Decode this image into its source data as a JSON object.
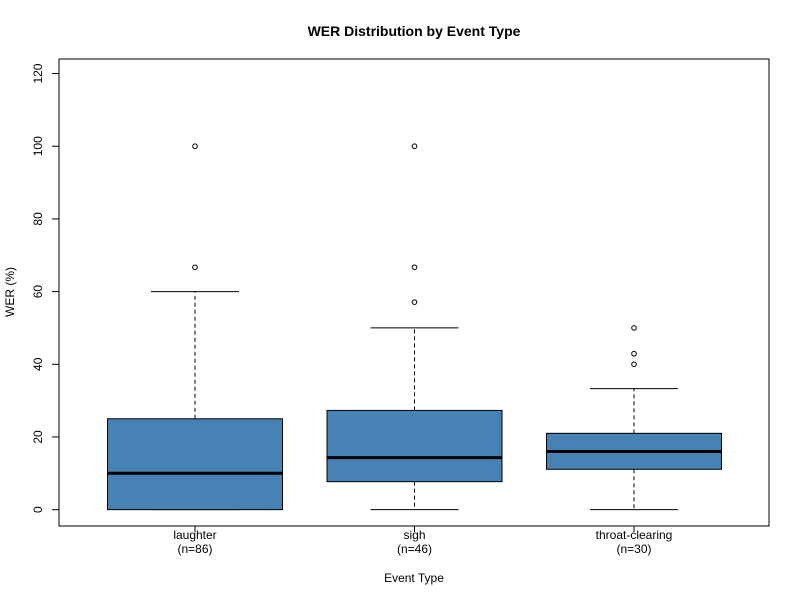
{
  "chart_data": {
    "type": "boxplot",
    "title": "WER Distribution by Event Type",
    "xlabel": "Event Type",
    "ylabel": "WER (%)",
    "ylim": [
      -4.5,
      124
    ],
    "yticks": [
      0,
      20,
      40,
      60,
      80,
      100,
      120
    ],
    "grid": false,
    "box_color": "#4682B4",
    "categories": [
      {
        "name": "laughter",
        "n_label": "(n=86)",
        "whisker_low": 0,
        "q1": 0,
        "median": 10,
        "q3": 25,
        "whisker_high": 60,
        "outliers": [
          66.7,
          100
        ]
      },
      {
        "name": "sigh",
        "n_label": "(n=46)",
        "whisker_low": 0,
        "q1": 7.7,
        "median": 14.3,
        "q3": 27.3,
        "whisker_high": 50,
        "outliers": [
          57.1,
          66.7,
          100
        ]
      },
      {
        "name": "throat-clearing",
        "n_label": "(n=30)",
        "whisker_low": 0,
        "q1": 11.1,
        "median": 16,
        "q3": 21,
        "whisker_high": 33.3,
        "outliers": [
          40,
          42.9,
          50
        ]
      }
    ]
  }
}
